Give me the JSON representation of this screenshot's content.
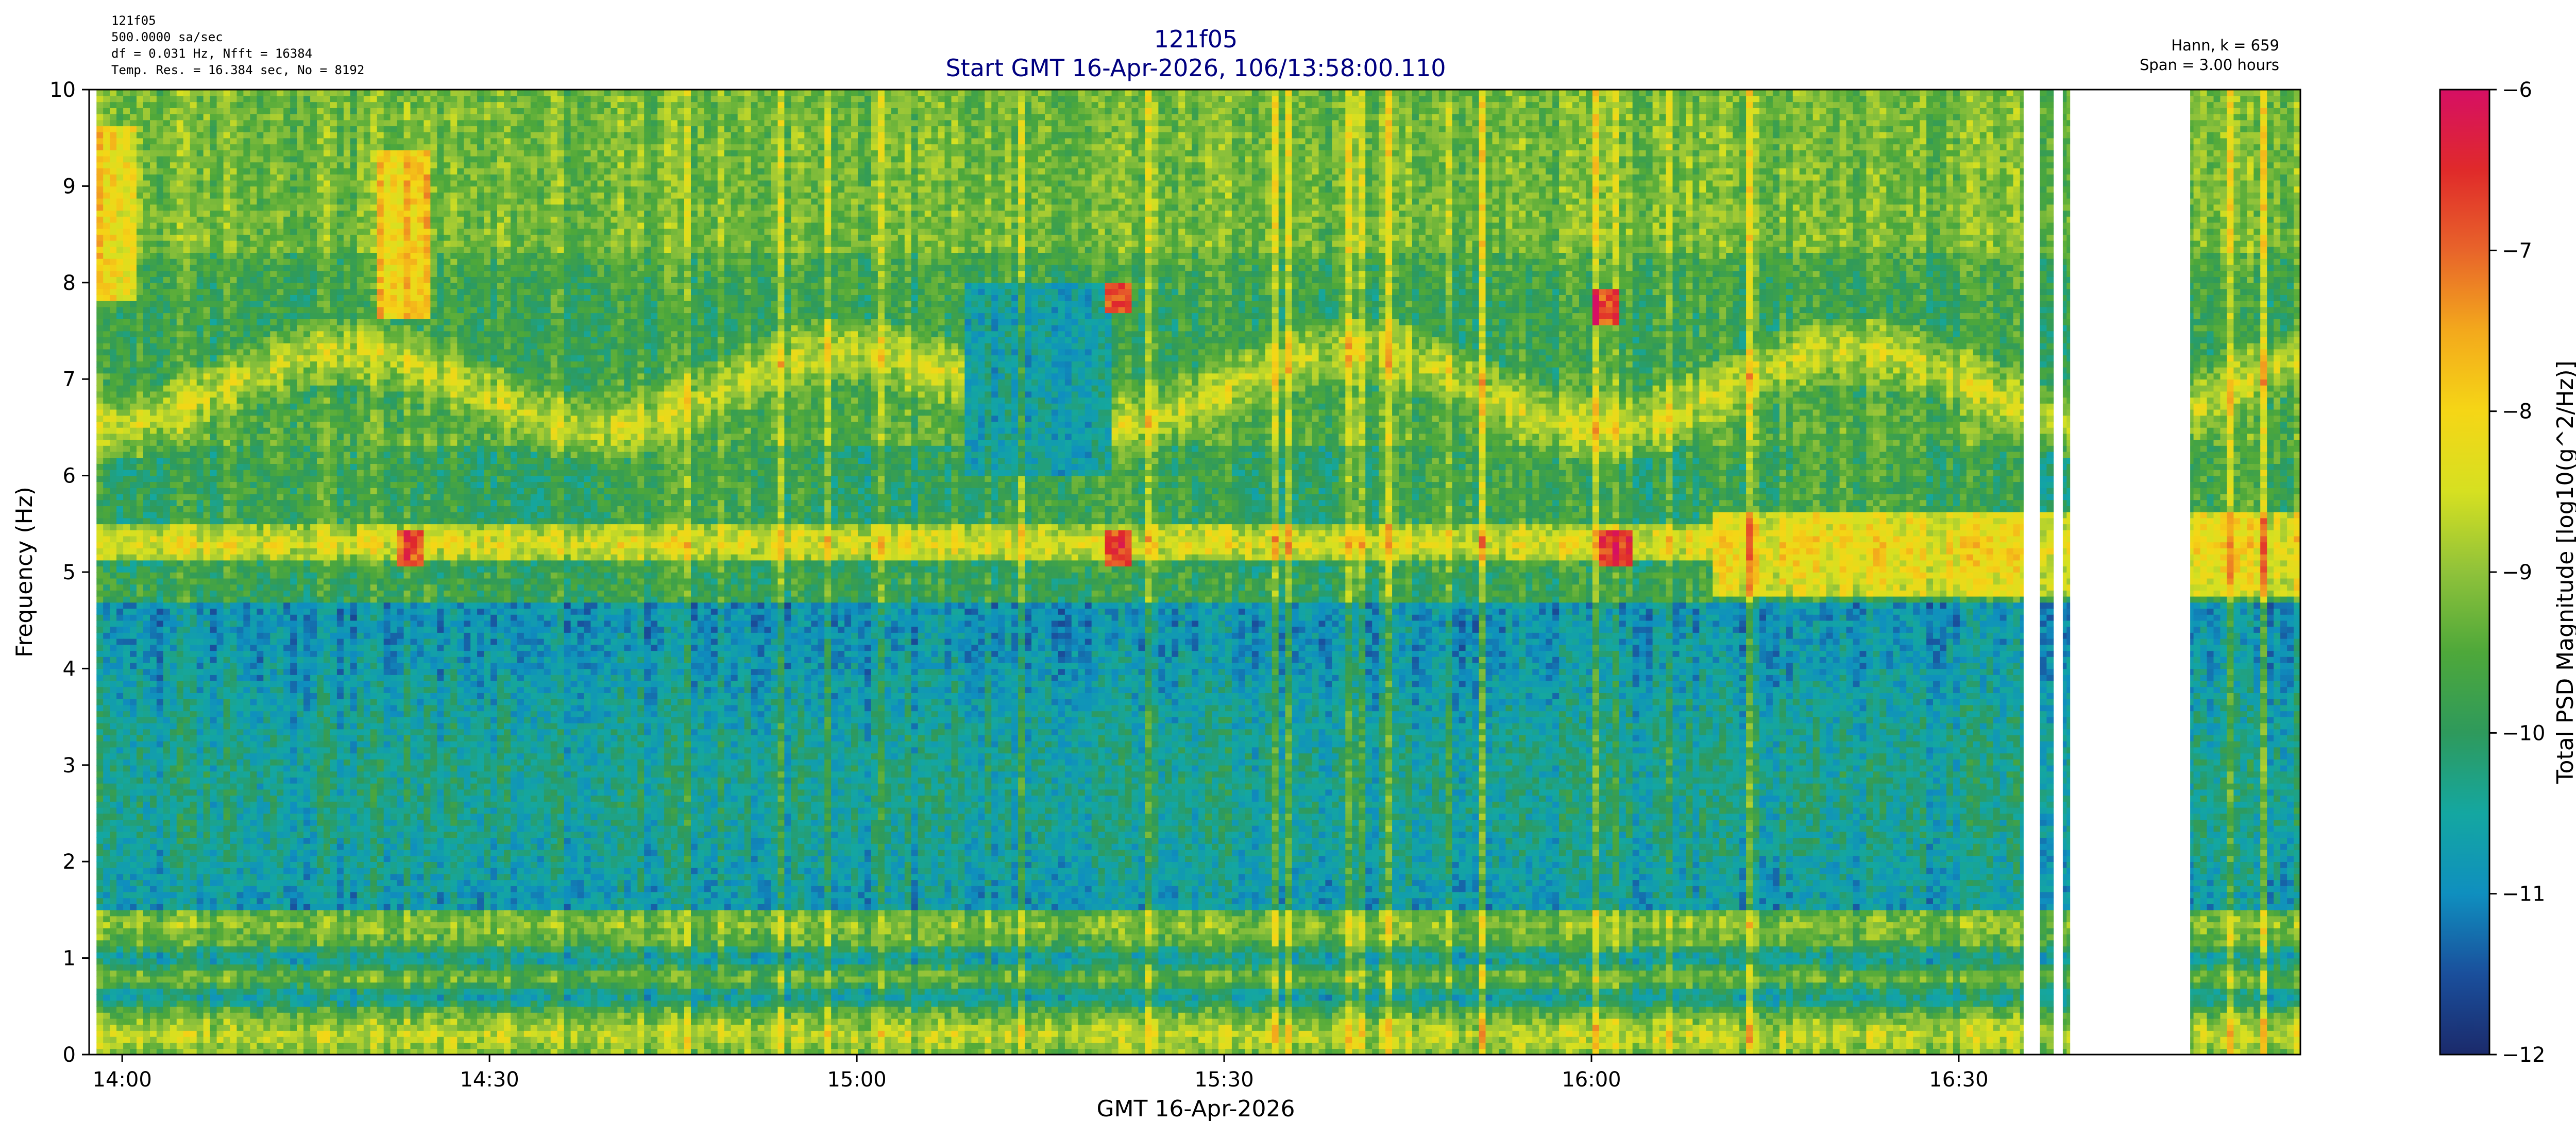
{
  "chart_data": {
    "type": "heatmap",
    "header_left": [
      "121f05",
      "500.0000 sa/sec",
      "df = 0.031 Hz,  Nfft = 16384",
      "Temp. Res. = 16.384 sec, No = 8192"
    ],
    "title": "121f05",
    "subtitle": "Start GMT 16-Apr-2026, 106/13:58:00.110",
    "header_right": [
      "Hann, k = 659",
      "Span = 3.00 hours"
    ],
    "xlabel": "GMT 16-Apr-2026",
    "ylabel": "Frequency (Hz)",
    "colorbar_label": "Total PSD Magnitude [log10(g^2/Hz)]",
    "x_start_minutes": 837.9,
    "x_end_minutes": 1017.9,
    "xlim_minutes": [
      837.3,
      1017.9
    ],
    "x_ticks": [
      {
        "minute": 840,
        "label": "14:00"
      },
      {
        "minute": 870,
        "label": "14:30"
      },
      {
        "minute": 900,
        "label": "15:00"
      },
      {
        "minute": 930,
        "label": "15:30"
      },
      {
        "minute": 960,
        "label": "16:00"
      },
      {
        "minute": 990,
        "label": "16:30"
      }
    ],
    "ylim": [
      0,
      10
    ],
    "y_ticks": [
      0,
      1,
      2,
      3,
      4,
      5,
      6,
      7,
      8,
      9,
      10
    ],
    "clim": [
      -12,
      -6
    ],
    "colorbar_ticks": [
      -12,
      -11,
      -10,
      -9,
      -8,
      -7,
      -6
    ],
    "colormap": [
      "#1b2a6b",
      "#1a4f9c",
      "#0f8fbf",
      "#14a7a1",
      "#2e9a5c",
      "#4ea83a",
      "#8fc23a",
      "#d6e021",
      "#f5d616",
      "#f3a91c",
      "#e8642a",
      "#e02a2a",
      "#d60f64"
    ],
    "gaps_minutes": [
      [
        995.3,
        996.5
      ],
      [
        997.8,
        998.5
      ],
      [
        999.1,
        1008.9
      ]
    ],
    "features": [
      {
        "kind": "horizontal_band",
        "freq_hz": 5.3,
        "level": -8.3
      },
      {
        "kind": "horizontal_band",
        "freq_hz": 0.2,
        "level": -8.6
      },
      {
        "kind": "horizontal_band",
        "freq_hz": 1.35,
        "level": -9.0
      },
      {
        "kind": "curved_band",
        "freq_min_hz": 6.5,
        "freq_max_hz": 7.3,
        "level": -8.4
      },
      {
        "kind": "hot_spot",
        "minute": 863.5,
        "freq_hz": 5.25,
        "level": -6.8
      },
      {
        "kind": "hot_spot",
        "minute": 921.5,
        "freq_hz": 5.25,
        "level": -6.8
      },
      {
        "kind": "hot_spot",
        "minute": 962.0,
        "freq_hz": 5.25,
        "level": -6.8
      },
      {
        "kind": "hot_spot",
        "minute": 921.3,
        "freq_hz": 7.85,
        "level": -6.9
      },
      {
        "kind": "hot_spot",
        "minute": 961.3,
        "freq_hz": 7.75,
        "level": -7.0
      }
    ]
  }
}
